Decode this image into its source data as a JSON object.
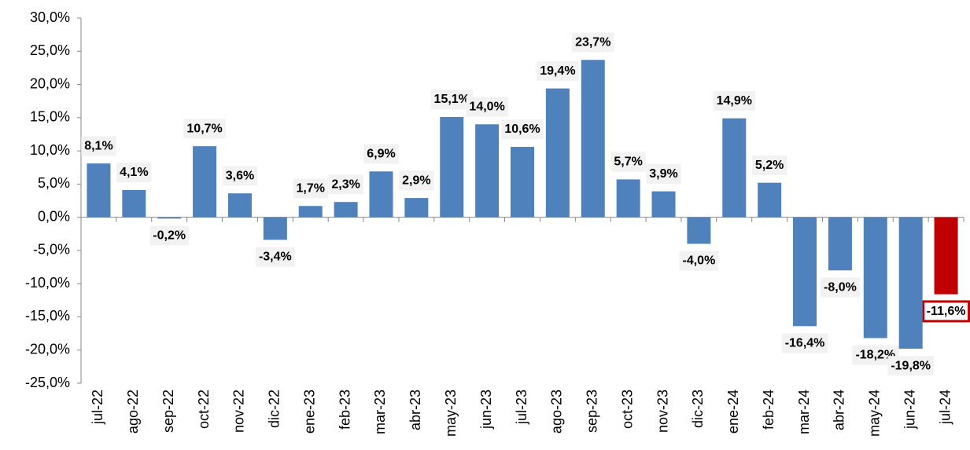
{
  "chart_data": {
    "type": "bar",
    "categories": [
      "jul-22",
      "ago-22",
      "sep-22",
      "oct-22",
      "nov-22",
      "dic-22",
      "ene-23",
      "feb-23",
      "mar-23",
      "abr-23",
      "may-23",
      "jun-23",
      "jul-23",
      "ago-23",
      "sep-23",
      "oct-23",
      "nov-23",
      "dic-23",
      "ene-24",
      "feb-24",
      "mar-24",
      "abr-24",
      "may-24",
      "jun-24",
      "jul-24"
    ],
    "values": [
      8.1,
      4.1,
      -0.2,
      10.7,
      3.6,
      -3.4,
      1.7,
      2.3,
      6.9,
      2.9,
      15.1,
      14.0,
      10.6,
      19.4,
      23.7,
      5.7,
      3.9,
      -4.0,
      14.9,
      5.2,
      -16.4,
      -8.0,
      -18.2,
      -19.8,
      -11.6
    ],
    "value_labels": [
      "8,1%",
      "4,1%",
      "-0,2%",
      "10,7%",
      "3,6%",
      "-3,4%",
      "1,7%",
      "2,3%",
      "6,9%",
      "2,9%",
      "15,1%",
      "14,0%",
      "10,6%",
      "19,4%",
      "23,7%",
      "5,7%",
      "3,9%",
      "-4,0%",
      "14,9%",
      "5,2%",
      "-16,4%",
      "-8,0%",
      "-18,2%",
      "-19,8%",
      "-11,6%"
    ],
    "colors": [
      "#4f81bd",
      "#4f81bd",
      "#4f81bd",
      "#4f81bd",
      "#4f81bd",
      "#4f81bd",
      "#4f81bd",
      "#4f81bd",
      "#4f81bd",
      "#4f81bd",
      "#4f81bd",
      "#4f81bd",
      "#4f81bd",
      "#4f81bd",
      "#4f81bd",
      "#4f81bd",
      "#4f81bd",
      "#4f81bd",
      "#4f81bd",
      "#4f81bd",
      "#4f81bd",
      "#4f81bd",
      "#4f81bd",
      "#4f81bd",
      "#c00000"
    ],
    "ylim": [
      -25,
      30
    ],
    "yticks": [
      {
        "value": -25,
        "label": "-25,0%"
      },
      {
        "value": -20,
        "label": "-20,0%"
      },
      {
        "value": -15,
        "label": "-15,0%"
      },
      {
        "value": -10,
        "label": "-10,0%"
      },
      {
        "value": -5,
        "label": "-5,0%"
      },
      {
        "value": 0,
        "label": "0,0%"
      },
      {
        "value": 5,
        "label": "5,0%"
      },
      {
        "value": 10,
        "label": "10,0%"
      },
      {
        "value": 15,
        "label": "15,0%"
      },
      {
        "value": 20,
        "label": "20,0%"
      },
      {
        "value": 25,
        "label": "25,0%"
      },
      {
        "value": 30,
        "label": "30,0%"
      }
    ],
    "grid": false
  }
}
